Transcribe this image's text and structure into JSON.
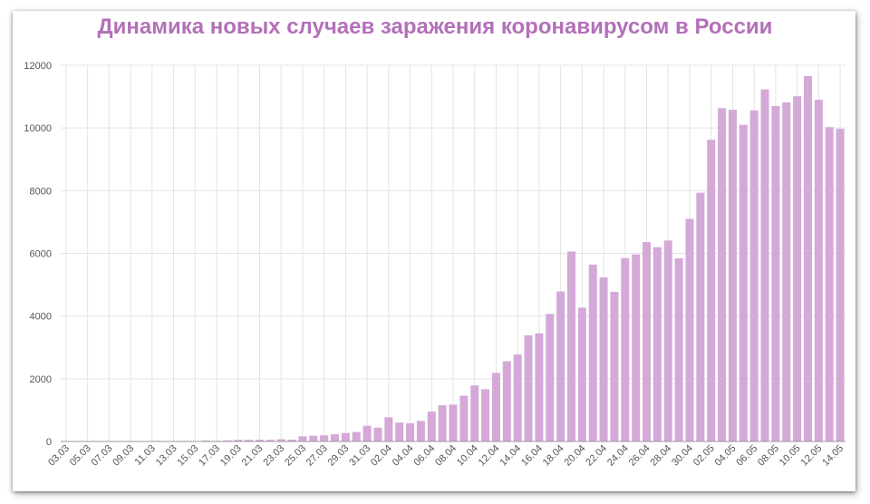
{
  "chart_data": {
    "type": "bar",
    "title": "Динамика новых случаев заражения коронавирусом в России",
    "xlabel": "",
    "ylabel": "",
    "ylim": [
      0,
      12000
    ],
    "yticks": [
      0,
      2000,
      4000,
      6000,
      8000,
      10000,
      12000
    ],
    "grid": true,
    "bar_color": "#d4a9d8",
    "title_color": "#b370b9",
    "categories": [
      "03.03",
      "04.03",
      "05.03",
      "06.03",
      "07.03",
      "08.03",
      "09.03",
      "10.03",
      "11.03",
      "12.03",
      "13.03",
      "14.03",
      "15.03",
      "16.03",
      "17.03",
      "18.03",
      "19.03",
      "20.03",
      "21.03",
      "22.03",
      "23.03",
      "24.03",
      "25.03",
      "26.03",
      "27.03",
      "28.03",
      "29.03",
      "30.03",
      "31.03",
      "01.04",
      "02.04",
      "03.04",
      "04.04",
      "05.04",
      "06.04",
      "07.04",
      "08.04",
      "09.04",
      "10.04",
      "11.04",
      "12.04",
      "13.04",
      "14.04",
      "15.04",
      "16.04",
      "17.04",
      "18.04",
      "19.04",
      "20.04",
      "21.04",
      "22.04",
      "23.04",
      "24.04",
      "25.04",
      "26.04",
      "27.04",
      "28.04",
      "29.04",
      "30.04",
      "01.05",
      "02.05",
      "03.05",
      "04.05",
      "05.05",
      "06.05",
      "07.05",
      "08.05",
      "09.05",
      "10.05",
      "11.05",
      "12.05",
      "13.05",
      "14.05"
    ],
    "xtick_labels": [
      "03.03",
      "05.03",
      "07.03",
      "09.03",
      "11.03",
      "13.03",
      "15.03",
      "17.03",
      "19.03",
      "21.03",
      "23.03",
      "25.03",
      "27.03",
      "29.03",
      "31.03",
      "02.04",
      "04.04",
      "06.04",
      "08.04",
      "10.04",
      "12.04",
      "14.04",
      "16.04",
      "18.04",
      "20.04",
      "22.04",
      "24.04",
      "26.04",
      "28.04",
      "30.04",
      "02.05",
      "04.05",
      "06.05",
      "08.05",
      "10.05",
      "12.05",
      "14.05"
    ],
    "values": [
      1,
      0,
      0,
      1,
      3,
      3,
      0,
      3,
      8,
      6,
      6,
      17,
      14,
      30,
      20,
      33,
      52,
      53,
      54,
      53,
      71,
      57,
      163,
      182,
      196,
      228,
      270,
      302,
      500,
      440,
      771,
      601,
      582,
      658,
      954,
      1154,
      1175,
      1459,
      1786,
      1667,
      2186,
      2558,
      2774,
      3388,
      3448,
      4070,
      4785,
      6060,
      4268,
      5642,
      5236,
      4774,
      5849,
      5966,
      6361,
      6198,
      6411,
      5841,
      7099,
      7933,
      9623,
      10633,
      10581,
      10102,
      10559,
      11231,
      10699,
      10817,
      11012,
      11656,
      10899,
      10028,
      9974
    ]
  }
}
